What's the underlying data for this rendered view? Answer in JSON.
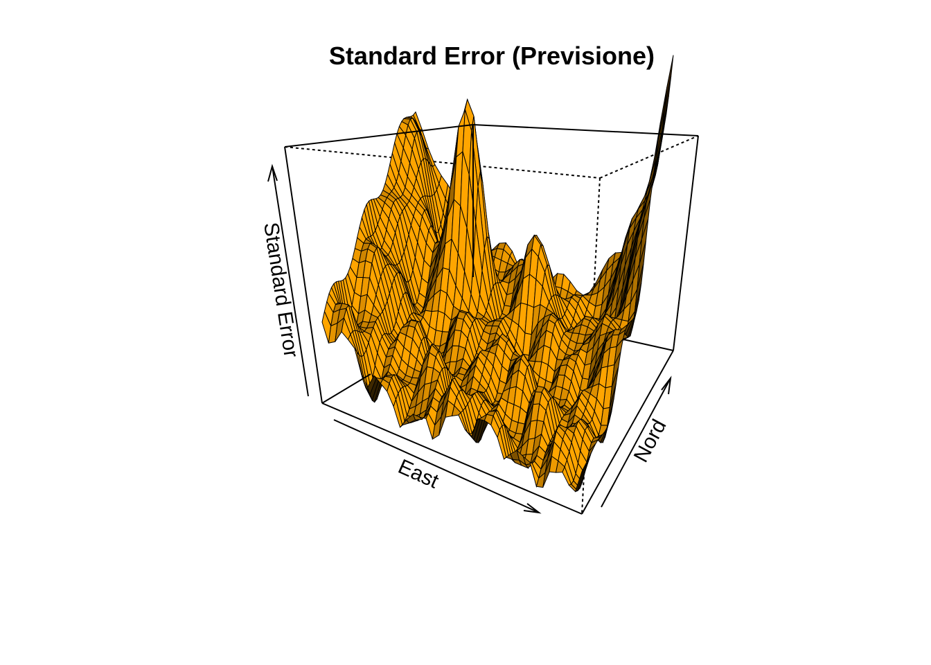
{
  "chart_data": {
    "type": "surface3d",
    "title": "Standard Error (Previsione)",
    "xlabel": "East",
    "ylabel": "Nord",
    "zlabel": "Standard Error",
    "box": true,
    "axes_ticks": false,
    "grid": false,
    "colors": {
      "surface_face": "#ffa500",
      "mesh_line": "#000000",
      "box_line": "#000000",
      "background": "#ffffff"
    },
    "description_of_values": "Standard error of kriging prediction over an East x Nord grid; values unlabeled on axes (no tick marks). Shape: high along the East=0 and Nord=max edges, central peak, many local dips/bumps elsewhere."
  }
}
